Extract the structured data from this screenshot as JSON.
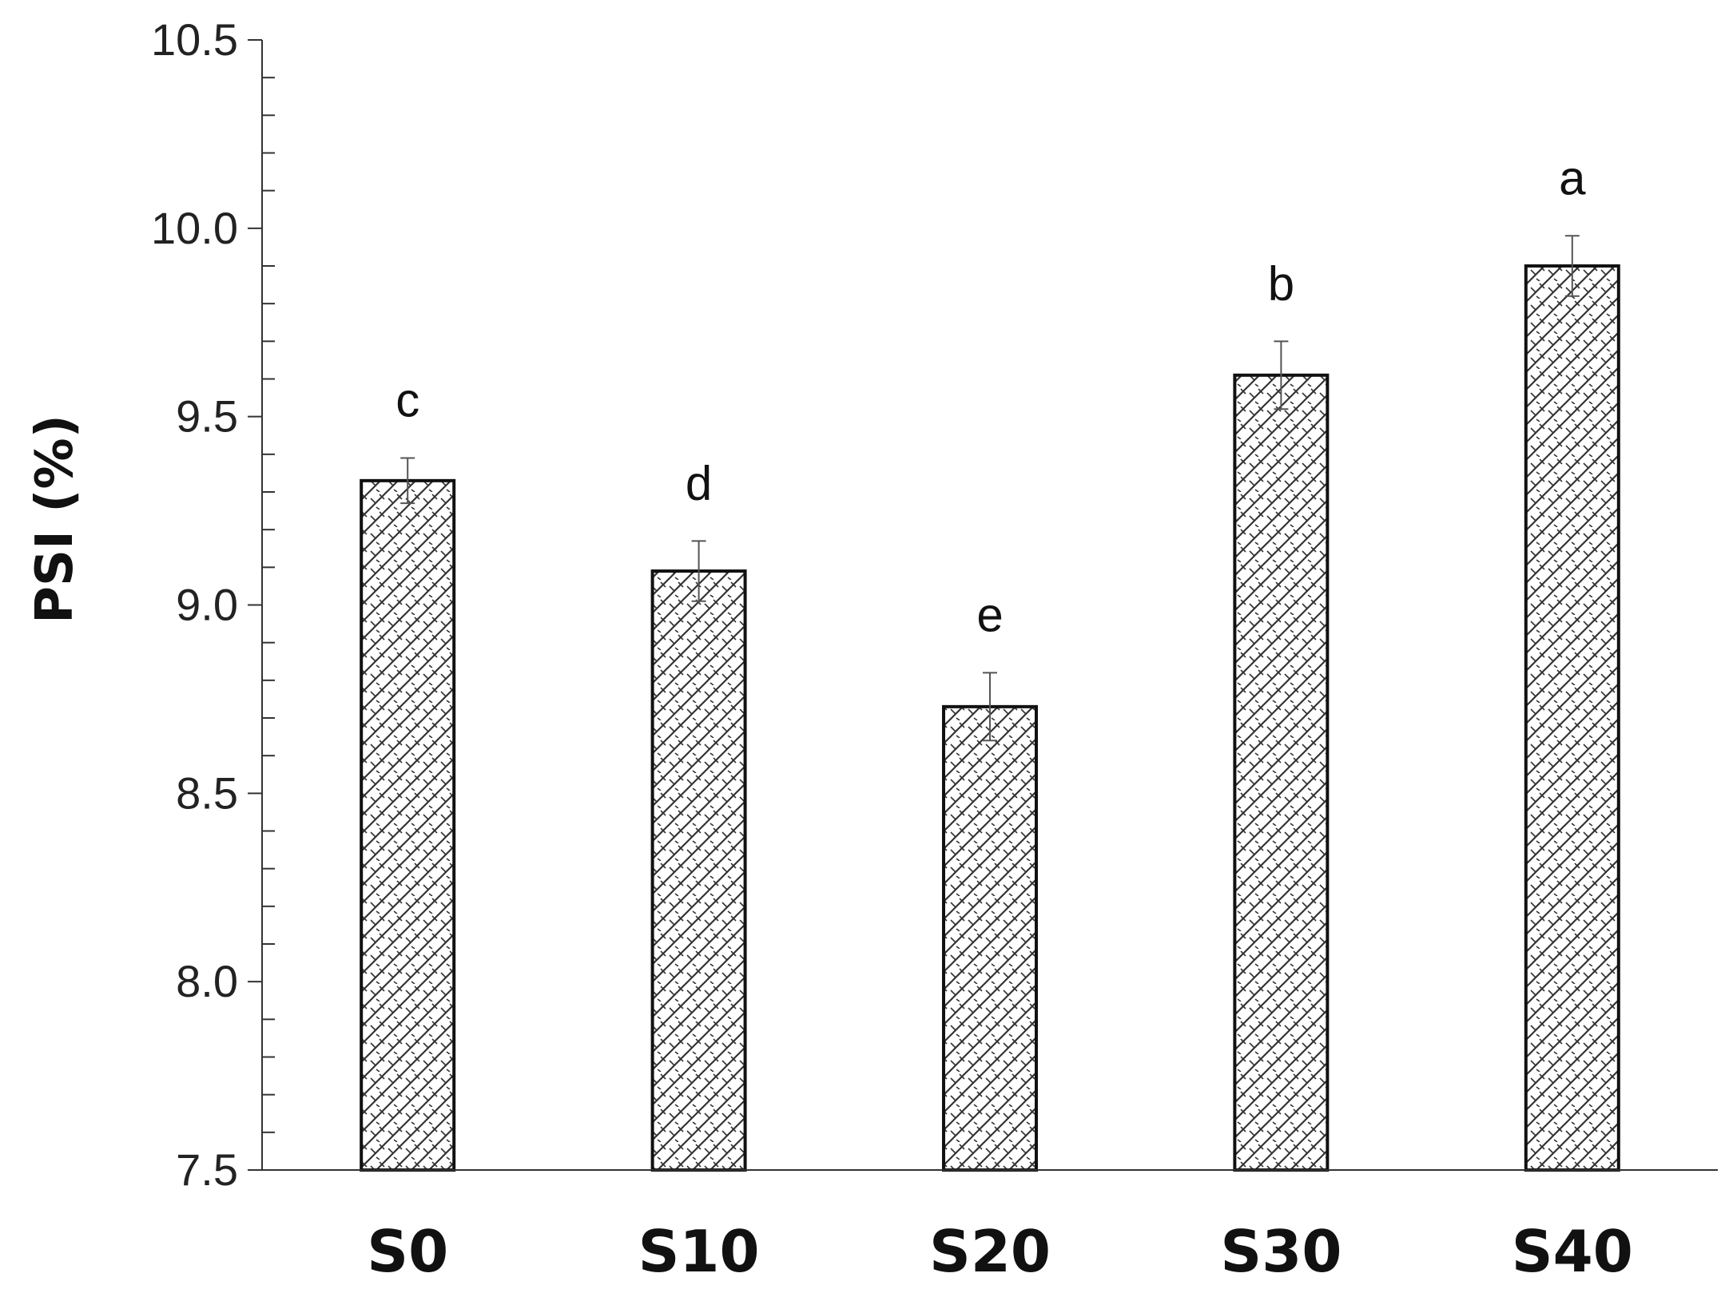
{
  "chart_data": {
    "type": "bar",
    "categories": [
      "S0",
      "S10",
      "S20",
      "S30",
      "S40"
    ],
    "values": [
      9.33,
      9.09,
      8.73,
      9.61,
      9.9
    ],
    "errors": [
      0.06,
      0.08,
      0.09,
      0.09,
      0.08
    ],
    "significance_letters": [
      "c",
      "d",
      "e",
      "b",
      "a"
    ],
    "ylabel": "PSI (%)",
    "ylim": [
      7.5,
      10.5
    ],
    "yticks": [
      "7.5",
      "8.0",
      "8.5",
      "9.0",
      "9.5",
      "10.0",
      "10.5"
    ],
    "ytick_values": [
      7.5,
      8.0,
      8.5,
      9.0,
      9.5,
      10.0,
      10.5
    ],
    "grid": false,
    "bar_fill": "crosshatch pattern",
    "colors": {
      "bar_stroke": "#111111",
      "hatch": "#333333",
      "axis": "#333333",
      "error_bar": "#555555"
    }
  }
}
